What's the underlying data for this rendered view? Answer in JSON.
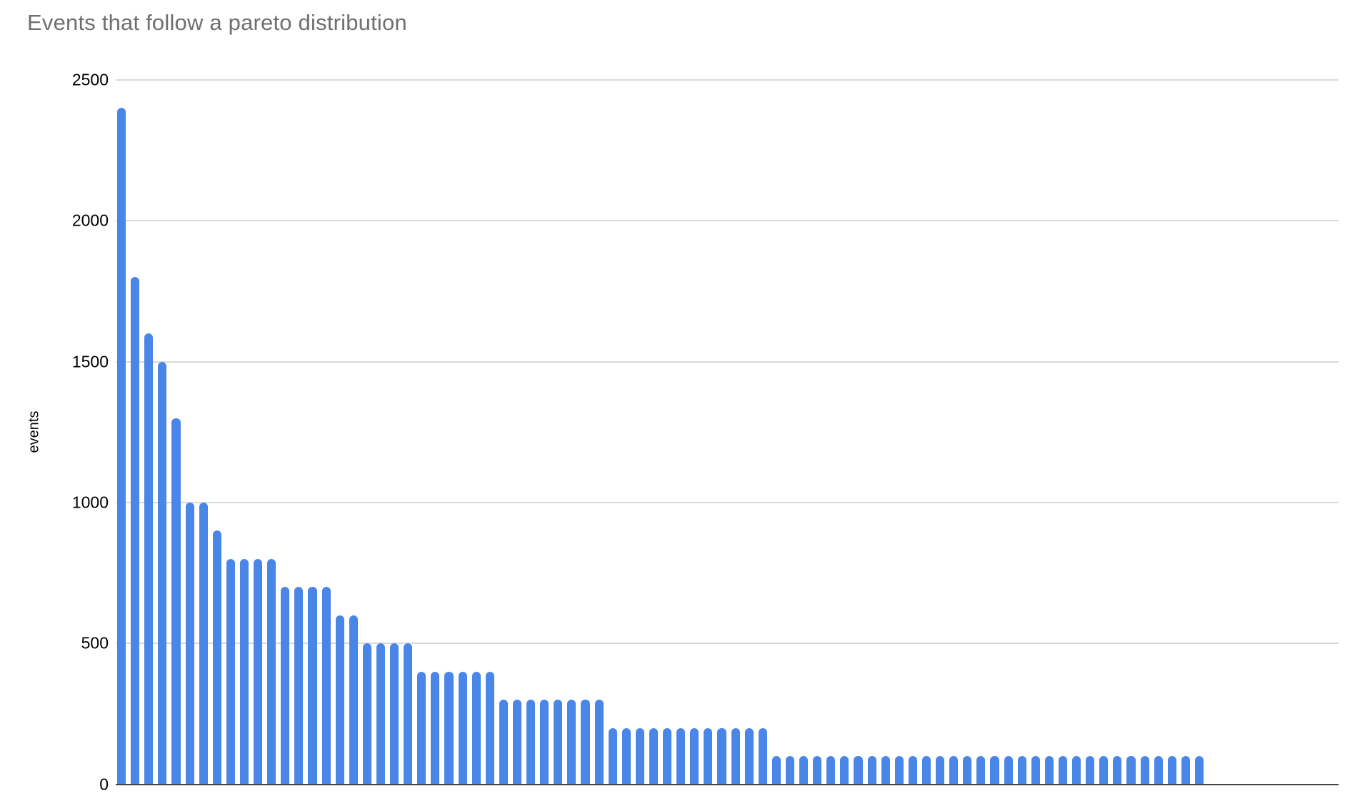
{
  "chart_data": {
    "type": "bar",
    "title": "Events that follow a pareto distribution",
    "xlabel": "",
    "ylabel": "events",
    "ylim": [
      0,
      2500
    ],
    "yticks": [
      0,
      500,
      1000,
      1500,
      2000,
      2500
    ],
    "grid": true,
    "legend": "none",
    "bar_color": "#4a86e8",
    "title_color": "#6f6f6f",
    "axis_line_color": "#424242",
    "gridline_color": "#d9d9d9",
    "values": [
      2400,
      1800,
      1600,
      1500,
      1300,
      1000,
      1000,
      900,
      800,
      800,
      800,
      800,
      700,
      700,
      700,
      700,
      600,
      600,
      500,
      500,
      500,
      500,
      400,
      400,
      400,
      400,
      400,
      400,
      300,
      300,
      300,
      300,
      300,
      300,
      300,
      300,
      200,
      200,
      200,
      200,
      200,
      200,
      200,
      200,
      200,
      200,
      200,
      200,
      100,
      100,
      100,
      100,
      100,
      100,
      100,
      100,
      100,
      100,
      100,
      100,
      100,
      100,
      100,
      100,
      100,
      100,
      100,
      100,
      100,
      100,
      100,
      100,
      100,
      100,
      100,
      100,
      100,
      100,
      100,
      100
    ]
  }
}
